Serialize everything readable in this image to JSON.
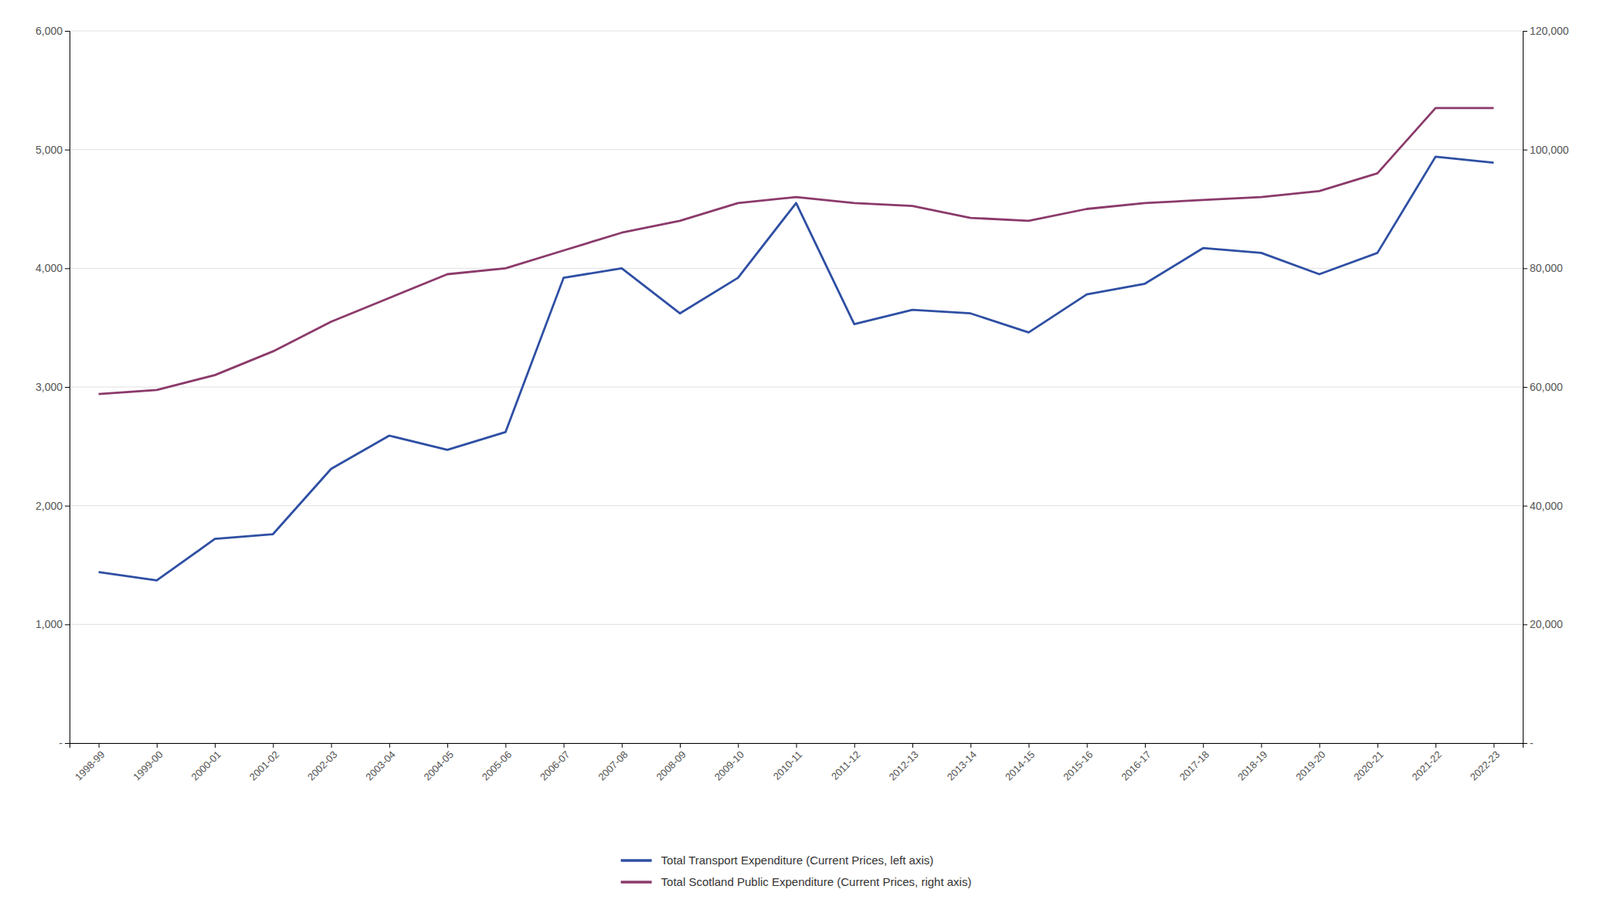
{
  "chart_data": {
    "type": "line",
    "categories": [
      "1998-99",
      "1999-00",
      "2000-01",
      "2001-02",
      "2002-03",
      "2003-04",
      "2004-05",
      "2005-06",
      "2006-07",
      "2007-08",
      "2008-09",
      "2009-10",
      "2010-11",
      "2011-12",
      "2012-13",
      "2013-14",
      "2014-15",
      "2015-16",
      "2016-17",
      "2017-18",
      "2018-19",
      "2019-20",
      "2020-21",
      "2021-22",
      "2022-23"
    ],
    "series": [
      {
        "name": "Total Transport Expenditure (Current Prices, left axis)",
        "color": "#2E4FA3",
        "axis": "y",
        "values": [
          1440,
          1370,
          1720,
          1760,
          2310,
          2590,
          2470,
          2620,
          3920,
          4000,
          3620,
          3920,
          4550,
          3530,
          3650,
          3620,
          3460,
          3780,
          3870,
          4170,
          4130,
          3950,
          4130,
          4940,
          4890
        ]
      },
      {
        "name": "Total Scotland Public Expenditure (Current Prices, right axis)",
        "color": "#8B3A6B",
        "axis": "y2",
        "values": [
          58800,
          59500,
          62000,
          66000,
          71000,
          75000,
          79000,
          80000,
          83000,
          86000,
          88000,
          91000,
          92000,
          91000,
          90500,
          88500,
          88000,
          90000,
          91000,
          91500,
          92000,
          93000,
          96000,
          107000,
          107000
        ]
      }
    ],
    "ylim": [
      0,
      6000
    ],
    "yticks": [
      {
        "value": 0,
        "label": "-"
      },
      {
        "value": 1000,
        "label": "1,000"
      },
      {
        "value": 2000,
        "label": "2,000"
      },
      {
        "value": 3000,
        "label": "3,000"
      },
      {
        "value": 4000,
        "label": "4,000"
      },
      {
        "value": 5000,
        "label": "5,000"
      },
      {
        "value": 6000,
        "label": "6,000"
      }
    ],
    "y2lim": [
      0,
      120000
    ],
    "y2ticks": [
      {
        "value": 0,
        "label": "-"
      },
      {
        "value": 20000,
        "label": "20,000"
      },
      {
        "value": 40000,
        "label": "40,000"
      },
      {
        "value": 60000,
        "label": "60,000"
      },
      {
        "value": 80000,
        "label": "80,000"
      },
      {
        "value": 100000,
        "label": "100,000"
      },
      {
        "value": 120000,
        "label": "120,000"
      }
    ],
    "grid": true,
    "legend": "bottom"
  }
}
